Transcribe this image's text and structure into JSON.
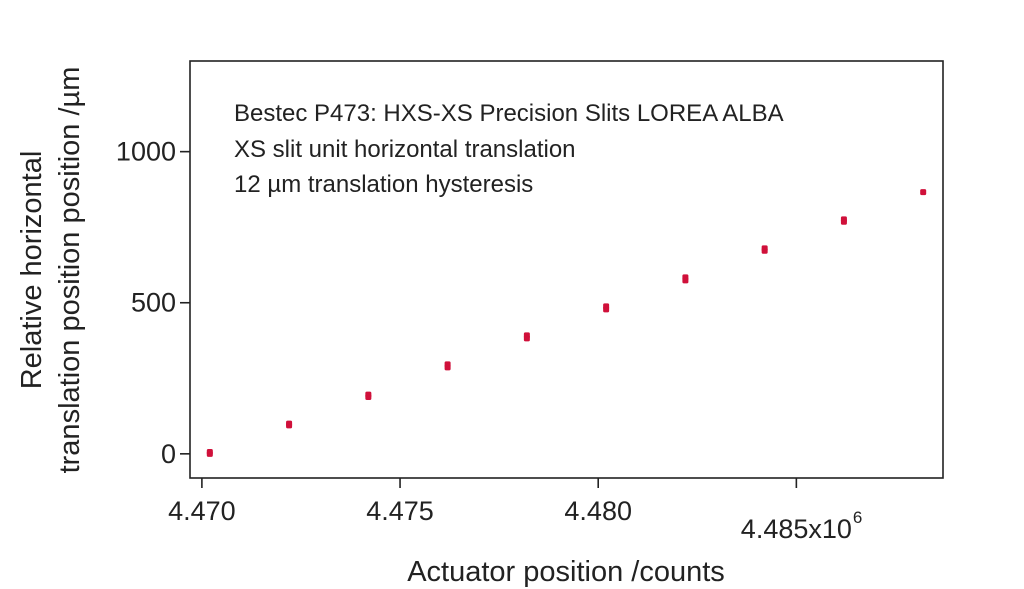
{
  "chart_data": {
    "type": "scatter",
    "title": "",
    "xlabel": "Actuator position /counts",
    "ylabel_lines": [
      "Relative horizontal",
      "translation position position /µm"
    ],
    "annotations": [
      "Bestec P473: HXS-XS Precision Slits LOREA ALBA",
      "XS slit unit horizontal translation",
      "12 µm translation hysteresis"
    ],
    "xlim": [
      4.4697,
      4.4887
    ],
    "ylim": [
      -80,
      1300
    ],
    "x_ticks": [
      {
        "value": 4.47,
        "label": "4.470"
      },
      {
        "value": 4.475,
        "label": "4.475"
      },
      {
        "value": 4.48,
        "label": "4.480"
      },
      {
        "value": 4.485,
        "label": "4.485x10"
      }
    ],
    "x_exponent": "6",
    "y_ticks": [
      {
        "value": 0,
        "label": "0"
      },
      {
        "value": 500,
        "label": "500"
      },
      {
        "value": 1000,
        "label": "1000"
      }
    ],
    "grid": false,
    "marker_color": "#d0103a",
    "series": [
      {
        "x": [
          4.4702,
          4.4702,
          4.4722,
          4.4722,
          4.4742,
          4.4742,
          4.4762,
          4.4762,
          4.4782,
          4.4782,
          4.4802,
          4.4802,
          4.4822,
          4.4822,
          4.4842,
          4.4842,
          4.4862,
          4.4862,
          4.4882
        ],
        "y": [
          0,
          6,
          94,
          100,
          188,
          196,
          286,
          296,
          382,
          392,
          478,
          488,
          574,
          584,
          672,
          680,
          768,
          776,
          866
        ]
      }
    ]
  }
}
